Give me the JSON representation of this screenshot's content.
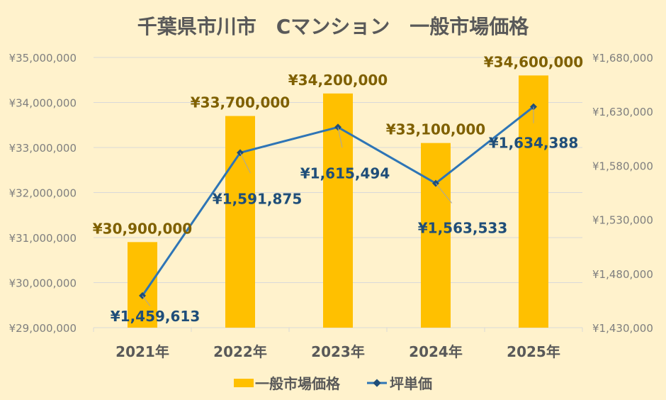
{
  "chart_data": {
    "type": "bar+line",
    "title": "千葉県市川市　Cマンション　一般市場価格",
    "categories": [
      "2021年",
      "2022年",
      "2023年",
      "2024年",
      "2025年"
    ],
    "series": [
      {
        "name": "一般市場価格",
        "type": "bar",
        "axis": "left",
        "values": [
          30900000,
          33700000,
          34200000,
          33100000,
          34600000
        ],
        "labels": [
          "¥30,900,000",
          "¥33,700,000",
          "¥34,200,000",
          "¥33,100,000",
          "¥34,600,000"
        ]
      },
      {
        "name": "坪単価",
        "type": "line",
        "axis": "right",
        "values": [
          1459613,
          1591875,
          1615494,
          1563533,
          1634388
        ],
        "labels": [
          "¥1,459,613",
          "¥1,591,875",
          "¥1,615,494",
          "¥1,563,533",
          "¥1,634,388"
        ]
      }
    ],
    "y_left": {
      "range": [
        29000000,
        35000000
      ],
      "ticks": [
        "¥29,000,000",
        "¥30,000,000",
        "¥31,000,000",
        "¥32,000,000",
        "¥33,000,000",
        "¥34,000,000",
        "¥35,000,000"
      ]
    },
    "y_right": {
      "range": [
        1430000,
        1680000
      ],
      "ticks": [
        "¥1,430,000",
        "¥1,480,000",
        "¥1,530,000",
        "¥1,580,000",
        "¥1,630,000",
        "¥1,680,000"
      ]
    },
    "grid": true,
    "legend": "bottom",
    "colors": {
      "background": "#FFF2CC",
      "bar": "#FFC000",
      "line": "#2E75B6",
      "bar_label": "#7F6000",
      "line_label": "#1F4E79",
      "grid": "#D9D9D9",
      "axis_text": "#7F7F7F",
      "title": "#595959"
    }
  }
}
